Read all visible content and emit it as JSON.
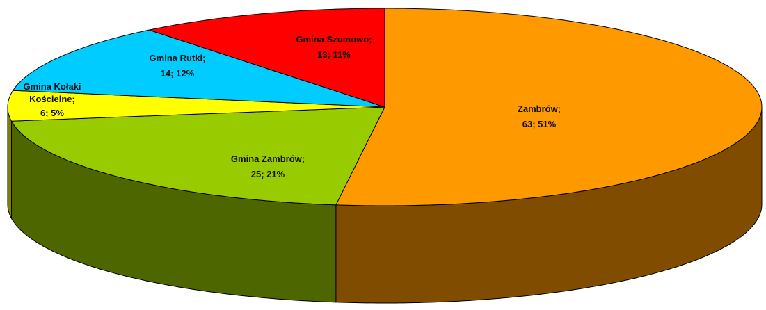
{
  "chart_data": {
    "type": "pie",
    "categories": [
      "Zambrów;",
      "Gmina Zambrów;",
      "Gmina Kołaki Kościelne;",
      "Gmina Rutki;",
      "Gmina Szumowo;"
    ],
    "values": [
      63,
      25,
      6,
      14,
      13
    ],
    "value_labels": [
      "63; 51%",
      "25; 21%",
      "6; 5%",
      "14; 12%",
      "13; 11%"
    ],
    "colors": [
      "#ff9900",
      "#99cc00",
      "#ffff00",
      "#00ccff",
      "#ff0000"
    ]
  }
}
